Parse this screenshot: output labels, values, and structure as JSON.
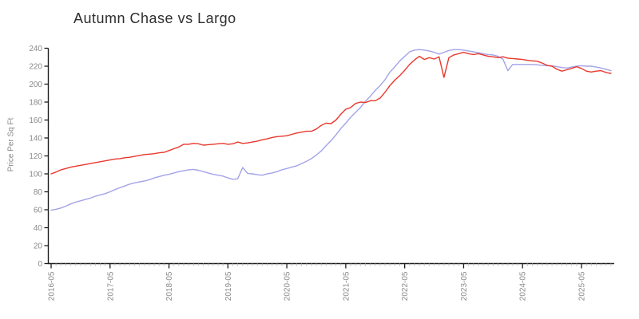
{
  "colors": {
    "background": "#ffffff",
    "axis": "#1c1c1c",
    "minor_tick": "#bbbbbb",
    "tick_label": "#8a8a8a",
    "title": "#2e2e2e",
    "series_red": "#e8382d",
    "series_blue": "#a3a3e8"
  },
  "chart_data": {
    "type": "line",
    "title": "Autumn Chase vs Largo",
    "xlabel": "",
    "ylabel": "Price Per Sq Ft",
    "ylim": [
      0,
      240
    ],
    "grid": false,
    "legend": "none",
    "y_ticks": [
      0,
      20,
      40,
      60,
      80,
      100,
      120,
      140,
      160,
      180,
      200,
      220,
      240
    ],
    "x_major_tick_labels": [
      "2016-05",
      "2017-05",
      "2018-05",
      "2019-05",
      "2020-05",
      "2021-05",
      "2022-05",
      "2023-05",
      "2024-05",
      "2025-05"
    ],
    "x_minor_tick": "monthly",
    "x": [
      "2016-05",
      "2016-06",
      "2016-07",
      "2016-08",
      "2016-09",
      "2016-10",
      "2016-11",
      "2016-12",
      "2017-01",
      "2017-02",
      "2017-03",
      "2017-04",
      "2017-05",
      "2017-06",
      "2017-07",
      "2017-08",
      "2017-09",
      "2017-10",
      "2017-11",
      "2017-12",
      "2018-01",
      "2018-02",
      "2018-03",
      "2018-04",
      "2018-05",
      "2018-06",
      "2018-07",
      "2018-08",
      "2018-09",
      "2018-10",
      "2018-11",
      "2018-12",
      "2019-01",
      "2019-02",
      "2019-03",
      "2019-04",
      "2019-05",
      "2019-06",
      "2019-07",
      "2019-08",
      "2019-09",
      "2019-10",
      "2019-11",
      "2019-12",
      "2020-01",
      "2020-02",
      "2020-03",
      "2020-04",
      "2020-05",
      "2020-06",
      "2020-07",
      "2020-08",
      "2020-09",
      "2020-10",
      "2020-11",
      "2020-12",
      "2021-01",
      "2021-02",
      "2021-03",
      "2021-04",
      "2021-05",
      "2021-06",
      "2021-07",
      "2021-08",
      "2021-09",
      "2021-10",
      "2021-11",
      "2021-12",
      "2022-01",
      "2022-02",
      "2022-03",
      "2022-04",
      "2022-05",
      "2022-06",
      "2022-07",
      "2022-08",
      "2022-09",
      "2022-10",
      "2022-11",
      "2022-12",
      "2023-01",
      "2023-02",
      "2023-03",
      "2023-04",
      "2023-05",
      "2023-06",
      "2023-07",
      "2023-08",
      "2023-09",
      "2023-10",
      "2023-11",
      "2023-12",
      "2024-01",
      "2024-02",
      "2024-03",
      "2024-04",
      "2024-05",
      "2024-06",
      "2024-07",
      "2024-08",
      "2024-09",
      "2024-10",
      "2024-11",
      "2024-12",
      "2025-01",
      "2025-02",
      "2025-03",
      "2025-04",
      "2025-05",
      "2025-06",
      "2025-07",
      "2025-08",
      "2025-09",
      "2025-10",
      "2025-11"
    ],
    "series": [
      {
        "name": "Autumn Chase",
        "color": "#e8382d",
        "values": [
          100,
          102,
          104.5,
          106,
          107.5,
          108.5,
          109.5,
          110.5,
          111.5,
          112.5,
          113.5,
          114.5,
          115.5,
          116.5,
          117,
          118,
          118.5,
          119.5,
          120.5,
          121.5,
          122,
          122.5,
          123.5,
          124,
          126,
          128,
          130,
          133,
          133,
          134,
          133.5,
          132,
          132.5,
          133,
          133.5,
          134,
          133,
          133.5,
          135.5,
          134,
          134.5,
          135.5,
          136.5,
          138,
          139,
          140.5,
          141.5,
          142,
          142.5,
          144,
          145.5,
          146.5,
          147.5,
          147.5,
          150,
          154,
          156.5,
          156,
          160,
          166.5,
          172,
          174,
          178.5,
          180,
          179.5,
          181.5,
          181.5,
          184.5,
          191,
          198.5,
          204.5,
          209.5,
          215.5,
          222,
          227,
          231,
          227.5,
          229.5,
          228,
          230.5,
          207.5,
          229.5,
          232.5,
          234,
          235.5,
          234,
          233,
          234,
          232.5,
          231,
          230.5,
          229.5,
          230.5,
          229,
          228.5,
          228,
          227.5,
          226.5,
          226,
          225.5,
          223.5,
          221,
          220,
          216.5,
          214.5,
          216,
          217.5,
          219.5,
          217.5,
          214.5,
          213.5,
          214.5,
          215,
          213,
          212
        ]
      },
      {
        "name": "Largo",
        "color": "#a3a3e8",
        "values": [
          59.5,
          60.5,
          62,
          64,
          66.5,
          68.5,
          70,
          71.5,
          73,
          75,
          76.5,
          78,
          80,
          82.5,
          84.5,
          86.5,
          88.5,
          90,
          91,
          92,
          93.5,
          95.5,
          97,
          98.5,
          99.5,
          101,
          102.5,
          103.5,
          104.5,
          105,
          104,
          102.5,
          101,
          99.5,
          98.5,
          97.5,
          95.5,
          94,
          94.5,
          107,
          100.5,
          100,
          99,
          98.5,
          100,
          101,
          102.5,
          104.5,
          106,
          107.5,
          109,
          111.5,
          114,
          117,
          121,
          125.5,
          131.5,
          137,
          143.5,
          150.5,
          156.5,
          163,
          168.5,
          174,
          181,
          186.5,
          193,
          198.5,
          205,
          213.5,
          219.5,
          226,
          231,
          236,
          238,
          238.5,
          238,
          237,
          235.5,
          233.5,
          235.5,
          237.5,
          238.5,
          238.5,
          238,
          237,
          236,
          235,
          234,
          233,
          232.5,
          231,
          228,
          215,
          222,
          222,
          222,
          222,
          222,
          221.5,
          221,
          220.5,
          220.5,
          219.5,
          218.5,
          218,
          219,
          220,
          220.5,
          220,
          220,
          219,
          218,
          216.5,
          215
        ]
      }
    ]
  }
}
